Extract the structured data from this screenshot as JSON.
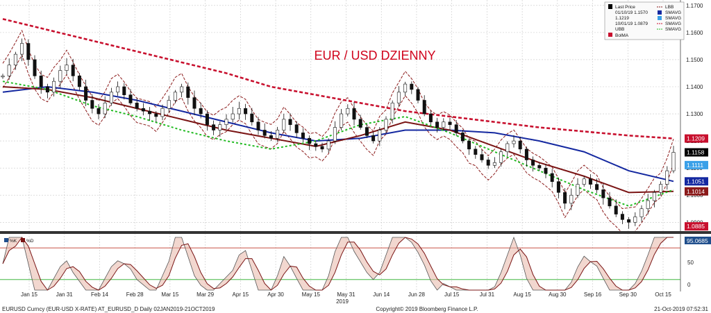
{
  "chart_data": {
    "type": "candlestick",
    "title": "EUR / USD DZIENNY",
    "title_color": "#d0021b",
    "grid": true,
    "y_ticks": [
      "1.1700",
      "1.1600",
      "1.1500",
      "1.1400",
      "1.1300",
      "1.1200",
      "1.1100",
      "1.1000",
      "1.0900"
    ],
    "ylim": [
      1.087,
      1.172
    ],
    "x_ticks": [
      "Jan 15",
      "Jan 31",
      "Feb 14",
      "Feb 28",
      "Mar 15",
      "Mar 29",
      "Apr 15",
      "Apr 30",
      "May 15",
      "May 31",
      "Jun 14",
      "Jun 28",
      "Jul 15",
      "Jul 31",
      "Aug 15",
      "Aug 30",
      "Sep 16",
      "Sep 30",
      "Oct 15"
    ],
    "x_year": "2019",
    "price_series": [
      1.144,
      1.148,
      1.152,
      1.156,
      1.15,
      1.144,
      1.14,
      1.138,
      1.142,
      1.146,
      1.148,
      1.144,
      1.14,
      1.135,
      1.132,
      1.13,
      1.134,
      1.138,
      1.14,
      1.137,
      1.134,
      1.132,
      1.131,
      1.13,
      1.129,
      1.132,
      1.135,
      1.138,
      1.14,
      1.136,
      1.132,
      1.13,
      1.126,
      1.124,
      1.126,
      1.128,
      1.13,
      1.132,
      1.13,
      1.127,
      1.124,
      1.122,
      1.121,
      1.124,
      1.128,
      1.126,
      1.123,
      1.121,
      1.119,
      1.118,
      1.117,
      1.12,
      1.125,
      1.13,
      1.132,
      1.128,
      1.125,
      1.122,
      1.12,
      1.124,
      1.128,
      1.134,
      1.138,
      1.141,
      1.139,
      1.135,
      1.13,
      1.127,
      1.125,
      1.127,
      1.126,
      1.123,
      1.12,
      1.117,
      1.115,
      1.113,
      1.111,
      1.112,
      1.116,
      1.119,
      1.12,
      1.117,
      1.113,
      1.111,
      1.11,
      1.108,
      1.105,
      1.101,
      1.097,
      1.1,
      1.104,
      1.106,
      1.104,
      1.102,
      1.099,
      1.096,
      1.093,
      1.091,
      1.09,
      1.092,
      1.095,
      1.098,
      1.101,
      1.104,
      1.109,
      1.1158
    ],
    "series": [
      {
        "name": "Last Price",
        "color": "#000000"
      },
      {
        "name": "SMAVG",
        "color": "#c8102e",
        "style": "dotted",
        "values": [
          1.165,
          1.161,
          1.157,
          1.153,
          1.149,
          1.145,
          1.14,
          1.137,
          1.134,
          1.131,
          1.129,
          1.127,
          1.125,
          1.1235,
          1.122,
          1.1209
        ]
      },
      {
        "name": "SMAVG",
        "color": "#1428a0",
        "values": [
          1.138,
          1.14,
          1.138,
          1.135,
          1.131,
          1.127,
          1.123,
          1.12,
          1.121,
          1.124,
          1.124,
          1.123,
          1.12,
          1.116,
          1.109,
          1.1051
        ]
      },
      {
        "name": "SMAVG",
        "color": "#7a1414",
        "values": [
          1.14,
          1.139,
          1.136,
          1.132,
          1.128,
          1.124,
          1.121,
          1.118,
          1.122,
          1.127,
          1.124,
          1.118,
          1.112,
          1.107,
          1.101,
          1.1014
        ]
      },
      {
        "name": "SMAVG",
        "color": "#22bb22",
        "style": "dashed",
        "values": [
          1.142,
          1.139,
          1.133,
          1.129,
          1.124,
          1.12,
          1.117,
          1.12,
          1.126,
          1.129,
          1.123,
          1.116,
          1.109,
          1.102,
          1.096,
          1.102
        ]
      },
      {
        "name": "UBB",
        "color": "#8b1a1a",
        "style": "dashed"
      },
      {
        "name": "LBB",
        "color": "#8b1a1a",
        "style": "dashed"
      },
      {
        "name": "BolMA",
        "color": "#cc0000"
      }
    ],
    "price_labels": [
      {
        "value": "1.1209",
        "bg": "#c8102e",
        "fg": "#ffffff"
      },
      {
        "value": "1.1158",
        "bg": "#000000",
        "fg": "#ffffff"
      },
      {
        "value": "1.1111",
        "bg": "#3aa0e8",
        "fg": "#ffffff"
      },
      {
        "value": "1.1051",
        "bg": "#1428a0",
        "fg": "#ffffff"
      },
      {
        "value": "1.1014",
        "bg": "#8b1a1a",
        "fg": "#ffffff"
      },
      {
        "value": "1.0885",
        "bg": "#c8102e",
        "fg": "#ffffff"
      }
    ],
    "legend": {
      "items": [
        {
          "label": "Last Price",
          "marker": "candle"
        },
        {
          "label": "01/10/19 1.1570",
          "marker": "tick"
        },
        {
          "label": "1.1219",
          "marker": "plus"
        },
        {
          "label": "10/01/19 1.0879",
          "marker": "tick"
        },
        {
          "label": "UBB",
          "marker": "dash"
        },
        {
          "label": "BolMA",
          "marker": "square"
        },
        {
          "label": "LBB",
          "marker": "dash"
        },
        {
          "label": "SMAVG",
          "marker": "square-blue"
        },
        {
          "label": "SMAVG",
          "marker": "square-lightblue"
        },
        {
          "label": "SMAVG",
          "marker": "dash-red"
        },
        {
          "label": "SMAVG",
          "marker": "dash-green"
        }
      ]
    },
    "oscillator": {
      "legend": [
        "%K",
        "%D"
      ],
      "y_ticks": [
        "50",
        "0"
      ],
      "last_value": "95.0685",
      "upper_line": 80,
      "lower_line": 20
    },
    "footer": {
      "left": "EURUSD Curncy (EUR-USD X-RATE) AT_EURUSD_D  Daily 02JAN2019-21OCT2019",
      "center": "Copyright© 2019 Bloomberg Finance L.P.",
      "right": "21-Oct-2019 07:52:31"
    }
  }
}
